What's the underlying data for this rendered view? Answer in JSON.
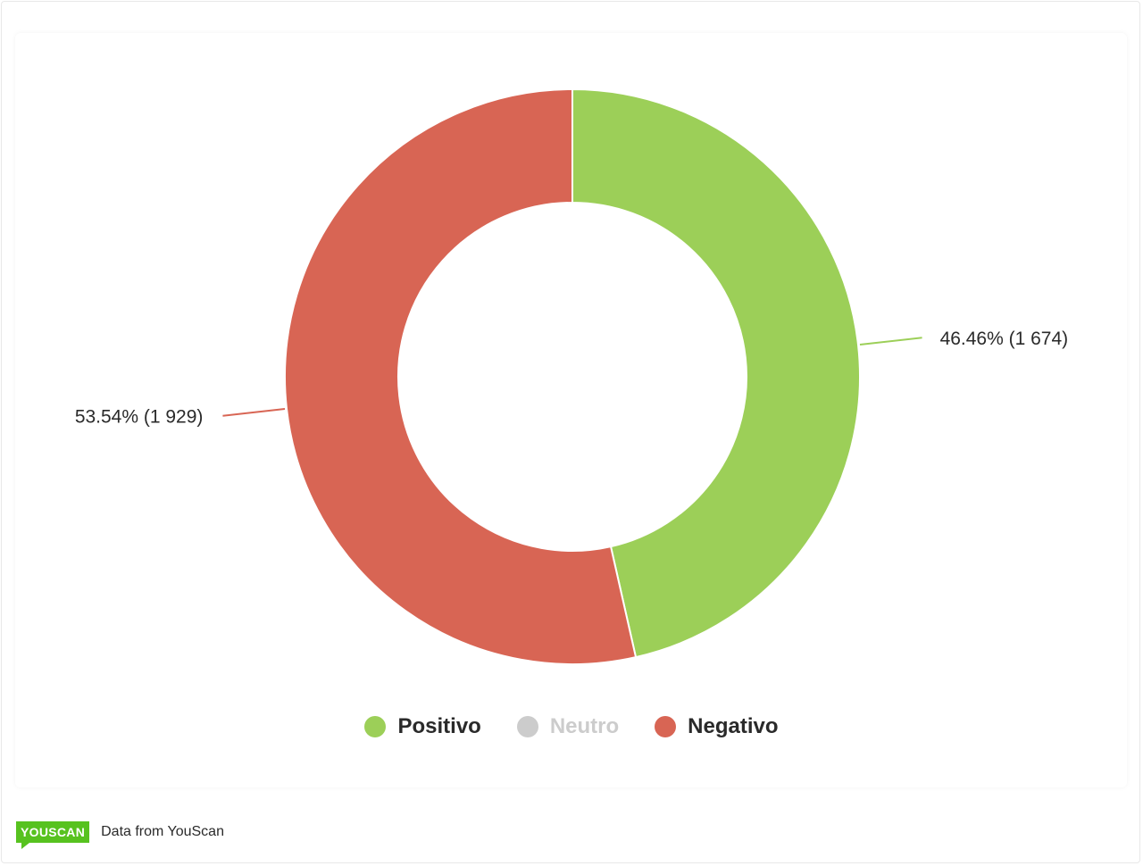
{
  "chart_data": {
    "type": "pie",
    "variant": "donut",
    "slices": [
      {
        "name": "Positivo",
        "percent": 46.46,
        "count": 1674,
        "label": "46.46% (1 674)",
        "color": "#9ccf58"
      },
      {
        "name": "Negativo",
        "percent": 53.54,
        "count": 1929,
        "label": "53.54% (1 929)",
        "color": "#d86554"
      }
    ],
    "legend": [
      {
        "label": "Positivo",
        "color": "#9ccf58",
        "active": true
      },
      {
        "label": "Neutro",
        "color": "#cccccc",
        "active": false
      },
      {
        "label": "Negativo",
        "color": "#d86554",
        "active": true
      }
    ],
    "legend_position": "bottom-center"
  },
  "footer": {
    "logo_text": "YOUSCAN",
    "source_text": "Data from YouScan",
    "logo_color": "#57c21f"
  }
}
